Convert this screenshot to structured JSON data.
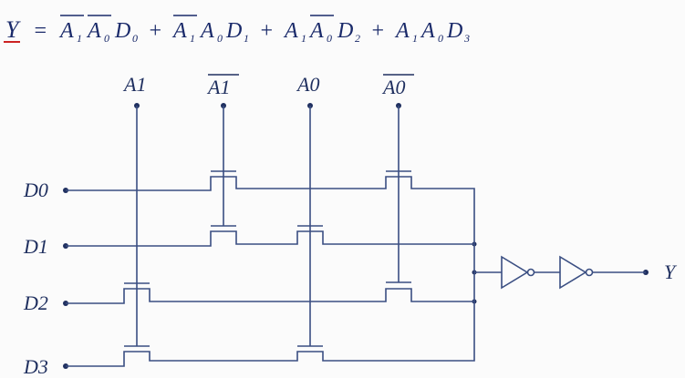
{
  "formula": {
    "lhs": "Y",
    "eq": "=",
    "plus": "+",
    "terms": [
      {
        "a1": "A",
        "a1_sub": "1",
        "a1_bar": true,
        "a0": "A",
        "a0_sub": "0",
        "a0_bar": true,
        "d": "D",
        "d_sub": "0"
      },
      {
        "a1": "A",
        "a1_sub": "1",
        "a1_bar": true,
        "a0": "A",
        "a0_sub": "0",
        "a0_bar": false,
        "d": "D",
        "d_sub": "1"
      },
      {
        "a1": "A",
        "a1_sub": "1",
        "a1_bar": false,
        "a0": "A",
        "a0_sub": "0",
        "a0_bar": true,
        "d": "D",
        "d_sub": "2"
      },
      {
        "a1": "A",
        "a1_sub": "1",
        "a1_bar": false,
        "a0": "A",
        "a0_sub": "0",
        "a0_bar": false,
        "d": "D",
        "d_sub": "3"
      }
    ]
  },
  "columns": [
    {
      "label": "A1",
      "overbar": false
    },
    {
      "label": "A1",
      "overbar": true
    },
    {
      "label": "A0",
      "overbar": false
    },
    {
      "label": "A0",
      "overbar": true
    }
  ],
  "rows": [
    "D0",
    "D1",
    "D2",
    "D3"
  ],
  "output_label": "Y",
  "colors": {
    "wire": "#3a4e82",
    "text": "#1f2f5f",
    "underline": "#cc2222"
  }
}
